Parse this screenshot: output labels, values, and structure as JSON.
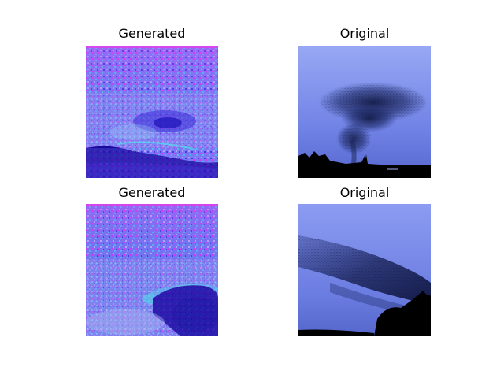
{
  "figure": {
    "panels": [
      {
        "title": "Generated"
      },
      {
        "title": "Original"
      },
      {
        "title": "Generated"
      },
      {
        "title": "Original"
      }
    ]
  },
  "colors": {
    "background": "#ffffff",
    "generated_base": "#6f6ff2",
    "generated_noise_magenta": "#d23cf0",
    "generated_noise_cyan": "#3fe0e8",
    "generated_dark": "#1a08a0",
    "original_sky_top": "#8fa0f0",
    "original_sky_bottom": "#5c6ed6",
    "original_flock": "#141c48",
    "original_ground": "#000000"
  }
}
